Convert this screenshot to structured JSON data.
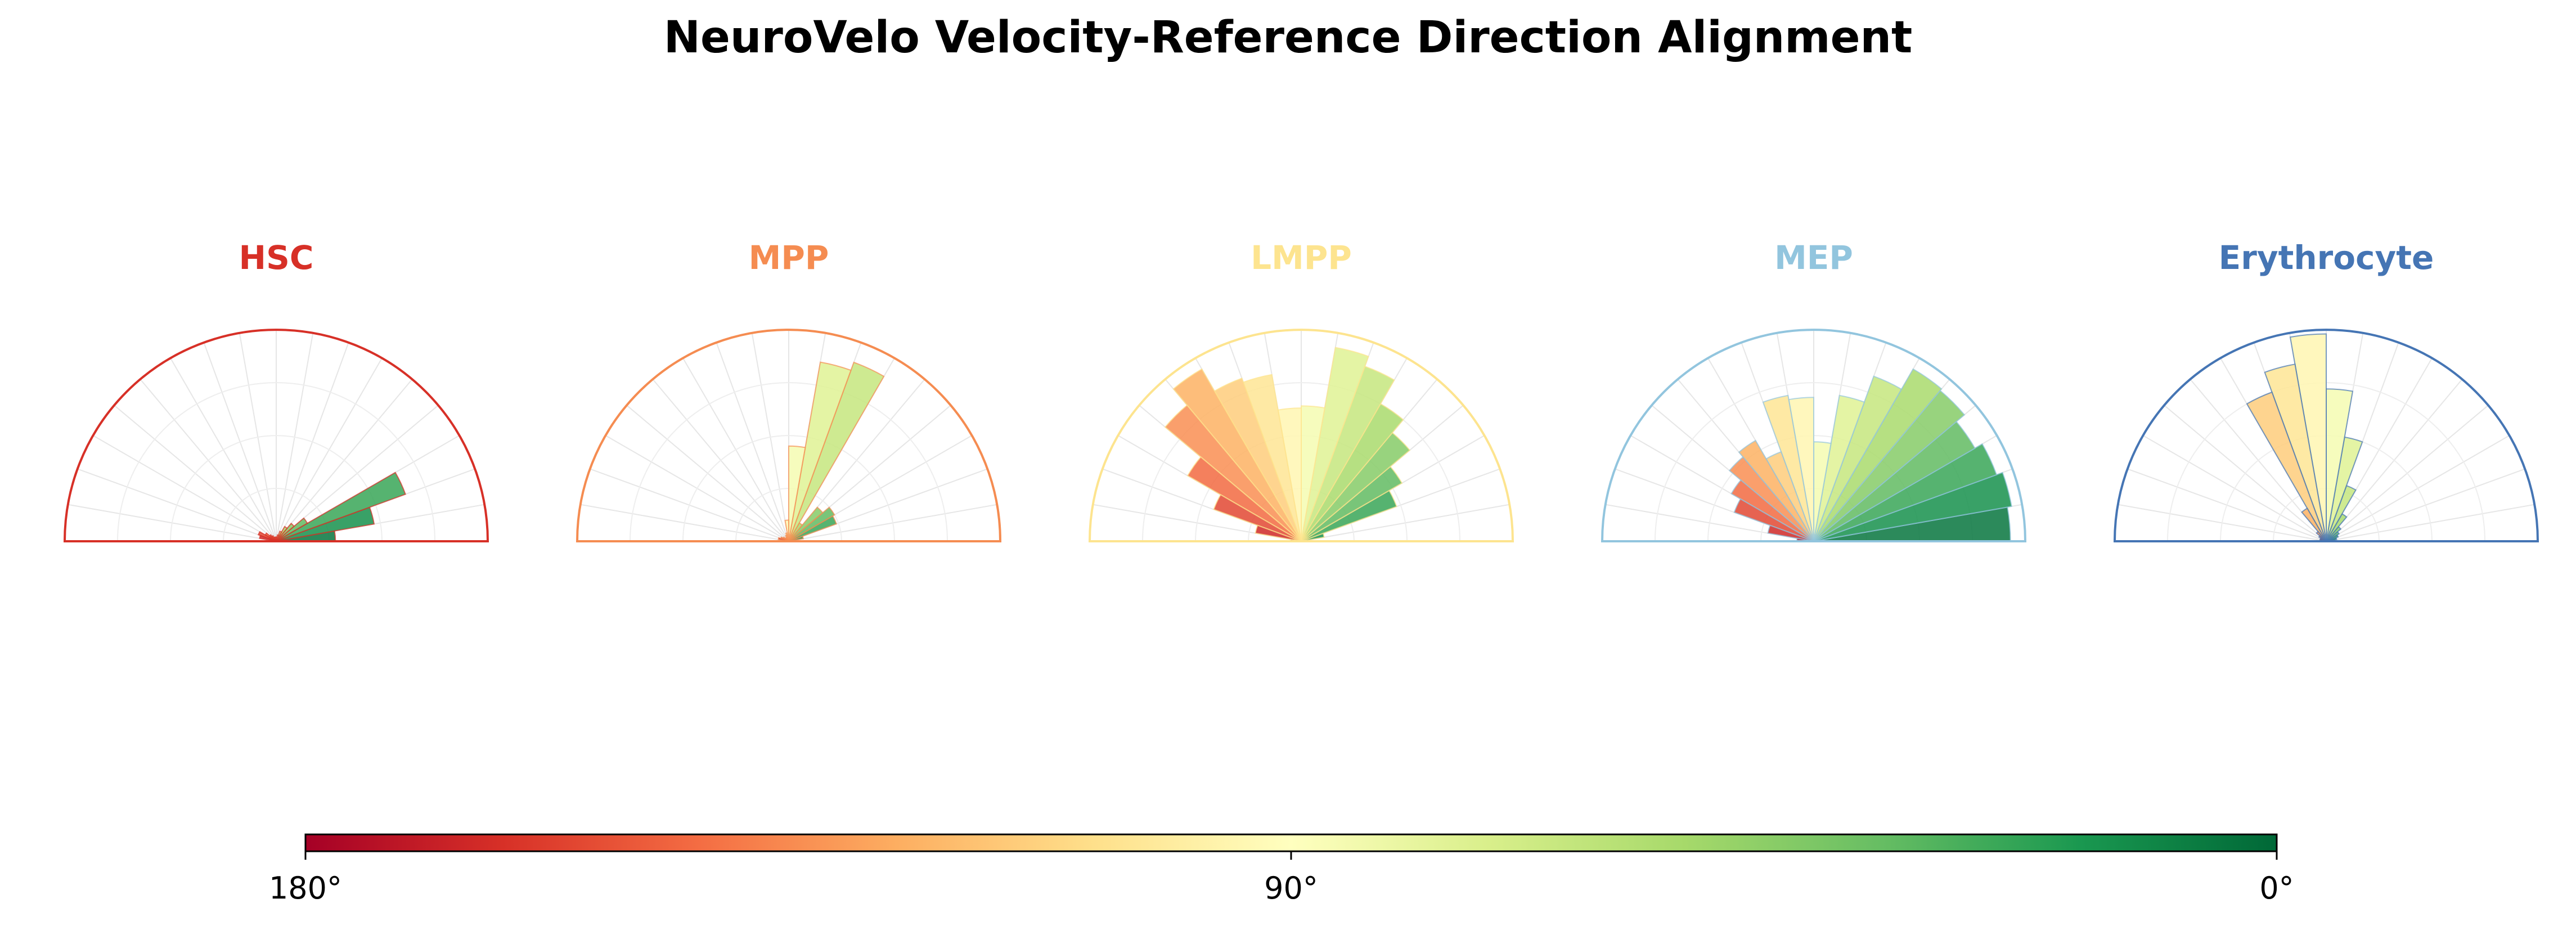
{
  "title": "NeuroVelo Velocity-Reference Direction Alignment",
  "chart_data": {
    "type": "polar-histogram",
    "angle_range_deg": [
      0,
      180
    ],
    "bin_width_deg": 10,
    "bin_centers_deg": [
      5,
      15,
      25,
      35,
      45,
      55,
      65,
      75,
      85,
      95,
      105,
      115,
      125,
      135,
      145,
      155,
      165,
      175
    ],
    "panels": [
      {
        "title": "HSC",
        "color": "#d73027",
        "values": [
          0.28,
          0.47,
          0.65,
          0.17,
          0.11,
          0.08,
          0.05,
          0.03,
          0.02,
          0.02,
          0.02,
          0.02,
          0.03,
          0.04,
          0.06,
          0.09,
          0.08,
          0.01
        ]
      },
      {
        "title": "MPP",
        "color": "#f58c51",
        "values": [
          0.02,
          0.07,
          0.24,
          0.25,
          0.21,
          0.1,
          0.9,
          0.86,
          0.45,
          0.1,
          0.04,
          0.03,
          0.02,
          0.02,
          0.03,
          0.04,
          0.05,
          0.01
        ]
      },
      {
        "title": "LMPP",
        "color": "#fde48f",
        "values": [
          0.03,
          0.11,
          0.48,
          0.55,
          0.67,
          0.75,
          0.88,
          0.93,
          0.64,
          0.63,
          0.8,
          0.82,
          0.94,
          0.84,
          0.62,
          0.44,
          0.22,
          0.05
        ]
      },
      {
        "title": "MEP",
        "color": "#92c5de",
        "values": [
          0.93,
          0.95,
          0.92,
          0.88,
          0.93,
          0.94,
          0.83,
          0.7,
          0.47,
          0.68,
          0.7,
          0.45,
          0.55,
          0.52,
          0.45,
          0.4,
          0.22,
          0.08
        ]
      },
      {
        "title": "Erythrocyte",
        "color": "#4575b4",
        "values": [
          0.04,
          0.05,
          0.06,
          0.07,
          0.09,
          0.15,
          0.28,
          0.5,
          0.72,
          0.98,
          0.85,
          0.75,
          0.18,
          0.06,
          0.04,
          0.03,
          0.03,
          0.02
        ]
      }
    ],
    "colorbar": {
      "ticks": [
        "180°",
        "90°",
        "0°"
      ],
      "colormap": "RdYlGn",
      "range_deg": [
        180,
        0
      ]
    },
    "grid": true
  }
}
